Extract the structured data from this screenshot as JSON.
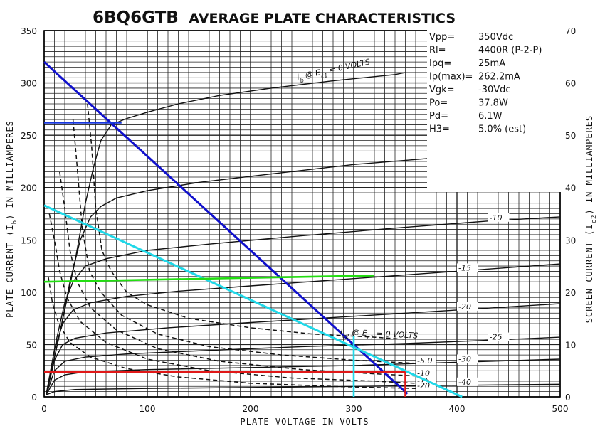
{
  "chart_data": {
    "type": "line",
    "title": "6BQ6GTB AVERAGE PLATE CHARACTERISTICS",
    "title_prefix": "6BQ6GTB",
    "title_suffix": "AVERAGE PLATE CHARACTERISTICS",
    "xlabel": "PLATE VOLTAGE IN VOLTS",
    "ylabel": "PLATE CURRENT (I_b) IN MILLIAMPERES",
    "ylabel2": "SCREEN CURRENT (I_c2) IN MILLIAMPERES",
    "xlim": [
      0,
      500
    ],
    "ylim": [
      0,
      350
    ],
    "y2lim": [
      0,
      70
    ],
    "grid": true,
    "x_ticks": [
      "0",
      "100",
      "200",
      "300",
      "400",
      "500"
    ],
    "y_ticks": [
      "350",
      "300",
      "250",
      "200",
      "150",
      "100",
      "50",
      "0"
    ],
    "y2_ticks": [
      "70",
      "60",
      "50",
      "40",
      "30",
      "20",
      "10",
      "0"
    ],
    "plate_curves": [
      {
        "label": "I_b @ E_c1 = 0 VOLTS",
        "x": [
          2,
          15,
          30,
          40,
          48,
          55,
          65,
          80,
          100,
          130,
          170,
          220,
          280,
          340,
          350
        ],
        "y": [
          2,
          60,
          130,
          185,
          220,
          245,
          260,
          266,
          272,
          280,
          288,
          295,
          302,
          308,
          310
        ]
      },
      {
        "label": "-5",
        "x": [
          2,
          15,
          25,
          35,
          45,
          55,
          70,
          100,
          150,
          220,
          300,
          400,
          500
        ],
        "y": [
          2,
          60,
          110,
          150,
          172,
          182,
          190,
          197,
          205,
          213,
          222,
          230,
          237
        ]
      },
      {
        "label": "-10",
        "x": [
          2,
          12,
          20,
          28,
          40,
          60,
          100,
          160,
          250,
          350,
          430,
          500
        ],
        "y": [
          2,
          55,
          90,
          110,
          125,
          132,
          140,
          146,
          154,
          162,
          168,
          172
        ]
      },
      {
        "label": "-15",
        "x": [
          2,
          10,
          18,
          28,
          45,
          80,
          130,
          200,
          300,
          400,
          500
        ],
        "y": [
          2,
          45,
          70,
          83,
          90,
          96,
          101,
          106,
          113,
          120,
          127
        ]
      },
      {
        "label": "-20",
        "x": [
          2,
          10,
          18,
          30,
          60,
          120,
          200,
          300,
          400,
          500
        ],
        "y": [
          2,
          35,
          50,
          56,
          61,
          66,
          71,
          77,
          83,
          89
        ]
      },
      {
        "label": "-25",
        "x": [
          2,
          10,
          20,
          40,
          80,
          150,
          250,
          350,
          430,
          500
        ],
        "y": [
          2,
          25,
          34,
          38,
          41,
          44,
          48,
          51,
          54,
          57
        ]
      },
      {
        "label": "-30",
        "x": [
          2,
          10,
          20,
          40,
          100,
          200,
          300,
          400,
          500
        ],
        "y": [
          2,
          16,
          21,
          24,
          26,
          28,
          30,
          33,
          36
        ]
      },
      {
        "label": "-40",
        "x": [
          2,
          10,
          30,
          100,
          200,
          300,
          400,
          500
        ],
        "y": [
          2,
          5,
          7,
          8,
          9,
          10,
          11,
          12
        ]
      }
    ],
    "screen_curves": [
      {
        "label": "I_c2 @ E_c1 = 0 VOLTS",
        "x": [
          42,
          46,
          50,
          56,
          65,
          80,
          100,
          140,
          200,
          260,
          320,
          350
        ],
        "y": [
          280,
          240,
          180,
          140,
          120,
          100,
          88,
          75,
          66,
          60,
          57,
          55
        ]
      },
      {
        "label": "-5.0",
        "x": [
          28,
          32,
          37,
          44,
          55,
          75,
          110,
          160,
          230,
          300,
          360
        ],
        "y": [
          265,
          220,
          160,
          120,
          100,
          78,
          60,
          48,
          40,
          35,
          32
        ]
      },
      {
        "label": "-10",
        "x": [
          15,
          20,
          25,
          32,
          45,
          70,
          110,
          170,
          250,
          320,
          360
        ],
        "y": [
          215,
          180,
          140,
          110,
          85,
          64,
          46,
          34,
          26,
          22,
          20
        ]
      },
      {
        "label": "-15",
        "x": [
          5,
          10,
          15,
          22,
          35,
          60,
          100,
          160,
          240,
          320,
          360
        ],
        "y": [
          175,
          150,
          120,
          95,
          72,
          52,
          36,
          25,
          18,
          15,
          13
        ]
      },
      {
        "label": "-20",
        "x": [
          4,
          8,
          14,
          25,
          45,
          80,
          130,
          200,
          280,
          360
        ],
        "y": [
          115,
          90,
          70,
          52,
          38,
          27,
          19,
          13,
          10,
          8
        ]
      }
    ],
    "load_lines": [
      {
        "color": "#1010cc",
        "x": [
          0,
          352
        ],
        "y": [
          320,
          3
        ]
      },
      {
        "color": "#20d8e8",
        "x": [
          0,
          405
        ],
        "y": [
          183,
          0
        ]
      }
    ],
    "markers": [
      {
        "color": "#1838e0",
        "x": [
          0,
          75
        ],
        "y": [
          262,
          262
        ]
      },
      {
        "color": "#22dd11",
        "x": [
          0,
          320
        ],
        "y": [
          110,
          116
        ]
      },
      {
        "color": "#e01818",
        "x": [
          0,
          350
        ],
        "y": [
          24,
          24
        ]
      },
      {
        "color": "#e01818",
        "x": [
          350,
          350
        ],
        "y": [
          24,
          0
        ]
      },
      {
        "color": "#20d8e8",
        "x": [
          300,
          300
        ],
        "y": [
          58,
          0
        ]
      }
    ],
    "plate_labels": [
      "-10",
      "-15",
      "-20",
      "-25",
      "-30",
      "-40"
    ],
    "screen_labels": [
      "-5.0",
      "-10",
      "-15",
      "-20"
    ]
  },
  "specs": [
    {
      "key": "Vpp=",
      "value": "350Vdc"
    },
    {
      "key": "Rl=",
      "value": "4400R (P-2-P)"
    },
    {
      "key": "Ipq=",
      "value": "25mA"
    },
    {
      "key": "Ip(max)=",
      "value": "262.2mA"
    },
    {
      "key": "Vgk=",
      "value": "-30Vdc"
    },
    {
      "key": "Po=",
      "value": "37.8W"
    },
    {
      "key": "Pd=",
      "value": "6.1W"
    },
    {
      "key": "H3=",
      "value": "5.0% (est)"
    }
  ],
  "colors": {
    "grid": "#222222",
    "curve": "#111111",
    "background": "#ffffff"
  }
}
